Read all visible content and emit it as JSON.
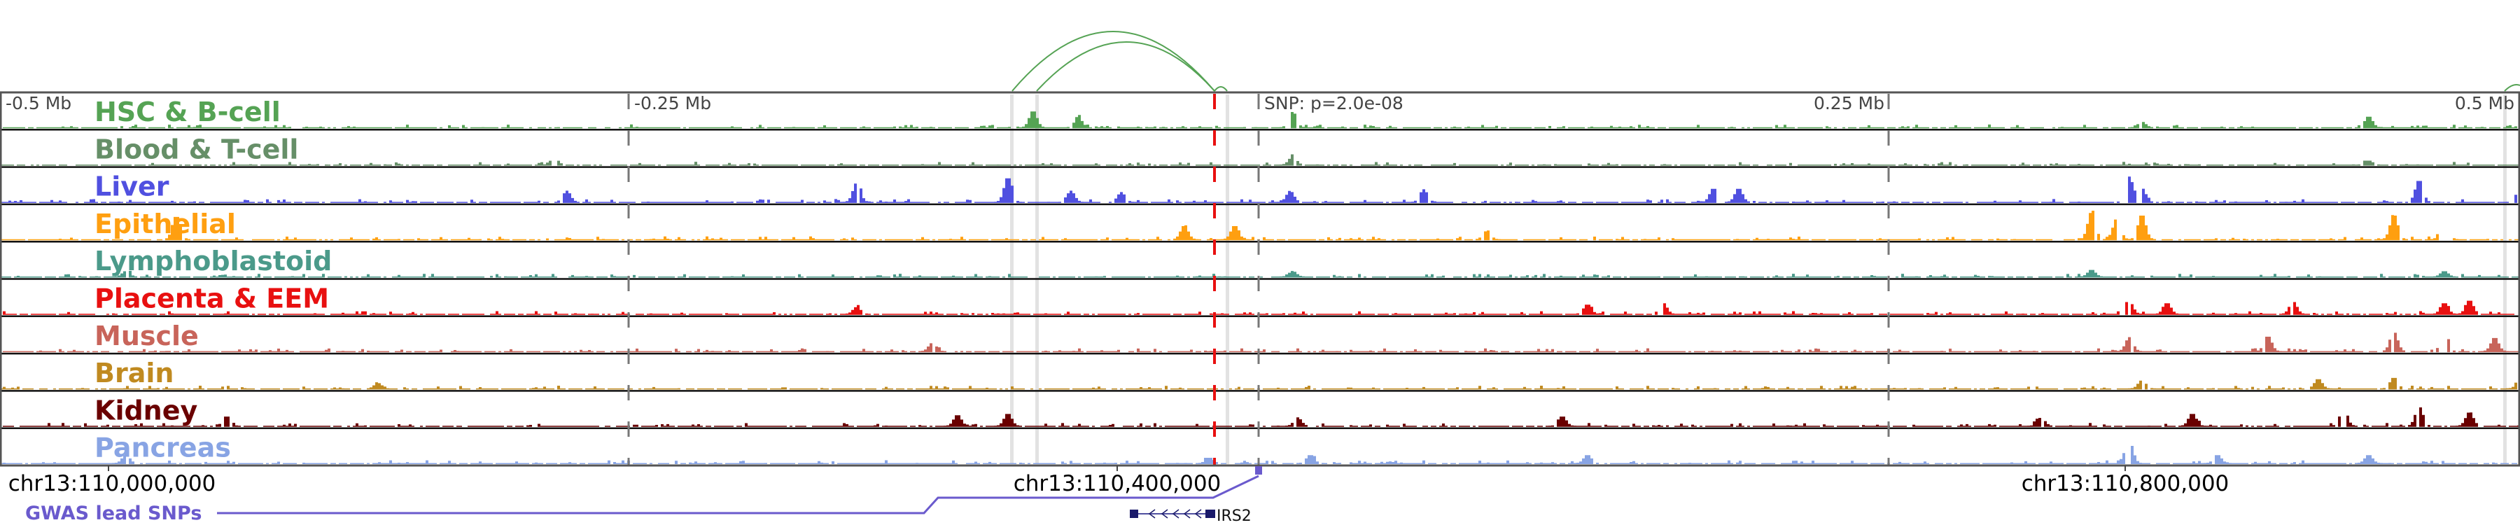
{
  "tracks": [
    {
      "label": "HSC & B-cell",
      "color": "#55a354",
      "peaks": [
        [
          -0.09,
          0.6
        ],
        [
          -0.072,
          0.35
        ],
        [
          0.013,
          0.55
        ],
        [
          0.44,
          0.4
        ],
        [
          0.35,
          0.2
        ]
      ]
    },
    {
      "label": "Blood & T-cell",
      "color": "#668f68",
      "peaks": [
        [
          -0.28,
          0.25
        ],
        [
          0.013,
          0.3
        ],
        [
          0.44,
          0.15
        ]
      ]
    },
    {
      "label": "Liver",
      "color": "#5050e0",
      "peaks": [
        [
          -0.275,
          0.4
        ],
        [
          -0.16,
          0.7
        ],
        [
          -0.1,
          0.9
        ],
        [
          -0.075,
          0.4
        ],
        [
          -0.055,
          0.35
        ],
        [
          0.012,
          0.4
        ],
        [
          0.065,
          0.45
        ],
        [
          0.18,
          0.5
        ],
        [
          0.19,
          0.5
        ],
        [
          0.345,
          0.9
        ],
        [
          0.35,
          0.5
        ],
        [
          0.46,
          0.8
        ],
        [
          0.5,
          0.35
        ]
      ]
    },
    {
      "label": "Epithelial",
      "color": "#ff9f10",
      "peaks": [
        [
          -0.43,
          0.85
        ],
        [
          -0.03,
          0.5
        ],
        [
          -0.01,
          0.5
        ],
        [
          0.09,
          0.3
        ],
        [
          0.33,
          1.0
        ],
        [
          0.34,
          0.75
        ],
        [
          0.35,
          0.9
        ],
        [
          0.45,
          0.9
        ],
        [
          0.47,
          0.95
        ]
      ]
    },
    {
      "label": "Lymphoblastoid",
      "color": "#4b9a8a",
      "peaks": [
        [
          -0.45,
          0.2
        ],
        [
          0.013,
          0.2
        ],
        [
          0.33,
          0.25
        ],
        [
          0.47,
          0.2
        ]
      ]
    },
    {
      "label": "Placenta & EEM",
      "color": "#e81010",
      "peaks": [
        [
          -0.16,
          0.25
        ],
        [
          0.13,
          0.35
        ],
        [
          0.16,
          0.4
        ],
        [
          0.345,
          0.45
        ],
        [
          0.36,
          0.4
        ],
        [
          0.41,
          0.45
        ],
        [
          0.47,
          0.4
        ],
        [
          0.48,
          0.5
        ]
      ]
    },
    {
      "label": "Muscle",
      "color": "#c8645a",
      "peaks": [
        [
          -0.13,
          0.3
        ],
        [
          0.345,
          0.5
        ],
        [
          0.4,
          0.55
        ],
        [
          0.45,
          0.7
        ],
        [
          0.47,
          0.6
        ],
        [
          0.49,
          0.5
        ]
      ]
    },
    {
      "label": "Brain",
      "color": "#c08a20",
      "peaks": [
        [
          -0.35,
          0.2
        ],
        [
          0.35,
          0.3
        ],
        [
          0.42,
          0.35
        ],
        [
          0.45,
          0.4
        ],
        [
          0.5,
          0.3
        ]
      ]
    },
    {
      "label": "Kidney",
      "color": "#6a0000",
      "peaks": [
        [
          -0.41,
          0.35
        ],
        [
          -0.12,
          0.4
        ],
        [
          -0.1,
          0.45
        ],
        [
          0.015,
          0.3
        ],
        [
          0.12,
          0.35
        ],
        [
          0.31,
          0.3
        ],
        [
          0.37,
          0.45
        ],
        [
          0.43,
          0.6
        ],
        [
          0.46,
          0.7
        ],
        [
          0.48,
          0.5
        ]
      ]
    },
    {
      "label": "Pancreas",
      "color": "#88a4e4",
      "peaks": [
        [
          -0.45,
          0.3
        ],
        [
          -0.02,
          0.2
        ],
        [
          0.02,
          0.3
        ],
        [
          0.13,
          0.3
        ],
        [
          0.345,
          0.8
        ],
        [
          0.38,
          0.3
        ],
        [
          0.44,
          0.3
        ]
      ]
    }
  ],
  "axis_ticks": [
    {
      "label": "-0.5 Mb",
      "offset": -0.5
    },
    {
      "label": "-0.25 Mb",
      "offset": -0.25
    },
    {
      "label": "SNP: p=2.0e-08",
      "offset": 0
    },
    {
      "label": "0.25 Mb",
      "offset": 0.25
    },
    {
      "label": "0.5 Mb",
      "offset": 0.5
    }
  ],
  "coordinates": [
    "chr13:110,000,000",
    "chr13:110,400,000",
    "chr13:110,800,000"
  ],
  "gwas_label": "GWAS lead SNPs",
  "gene": {
    "name": "IRS2",
    "strand": "-"
  },
  "colors": {
    "snp_line": "#e81010",
    "gwas": "#6a5acd",
    "gene": "#1a1a6a",
    "arc": "#55a354",
    "highlight": "#e2e2e2"
  }
}
